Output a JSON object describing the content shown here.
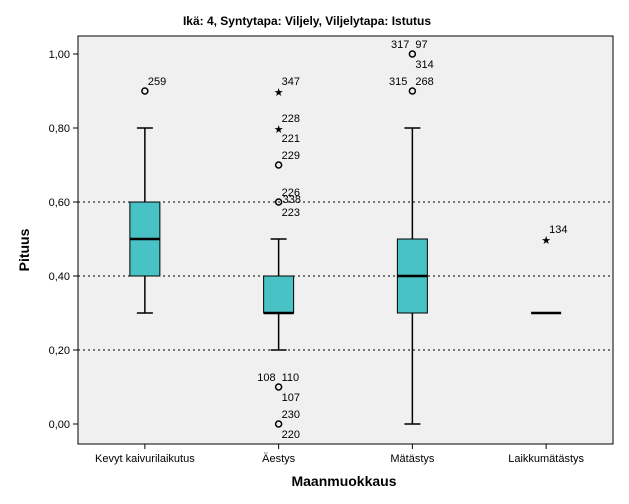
{
  "chart_data": {
    "type": "boxplot",
    "title": "Ikä: 4, Syntytapa: Viljely, Viljelytapa: Istutus",
    "xlabel": "Maanmuokkaus",
    "ylabel": "Pituus",
    "ylim": [
      0.0,
      1.05
    ],
    "yticks": [
      {
        "value": 0.0,
        "label": "0,00"
      },
      {
        "value": 0.2,
        "label": "0,20"
      },
      {
        "value": 0.4,
        "label": "0,40"
      },
      {
        "value": 0.6,
        "label": "0,60"
      },
      {
        "value": 0.8,
        "label": "0,80"
      },
      {
        "value": 1.0,
        "label": "1,00"
      }
    ],
    "reference_lines": [
      0.2,
      0.4,
      0.6
    ],
    "colors": {
      "plot_background": "#f0f0f0",
      "box_fill": "#48c2c5",
      "stroke": "#000000"
    },
    "categories": [
      "Kevyt kaivurilaikutus",
      "Äestys",
      "Mätästys",
      "Laikkumätästys"
    ],
    "boxes": [
      {
        "category": "Kevyt kaivurilaikutus",
        "whisker_low": 0.3,
        "q1": 0.4,
        "median": 0.5,
        "q3": 0.6,
        "whisker_high": 0.8,
        "outliers": [
          {
            "y": 0.9,
            "marker": "circle",
            "labels": [
              {
                "text": "259",
                "pos": "above-right"
              }
            ]
          }
        ]
      },
      {
        "category": "Äestys",
        "whisker_low": 0.2,
        "q1": 0.3,
        "median": 0.3,
        "q3": 0.4,
        "whisker_high": 0.5,
        "outliers": [
          {
            "y": 0.9,
            "marker": "star",
            "labels": [
              {
                "text": "347",
                "pos": "above-right"
              }
            ]
          },
          {
            "y": 0.8,
            "marker": "star",
            "labels": [
              {
                "text": "228",
                "pos": "above-right"
              },
              {
                "text": "221",
                "pos": "below-right"
              }
            ]
          },
          {
            "y": 0.7,
            "marker": "circle",
            "labels": [
              {
                "text": "229",
                "pos": "above-right"
              }
            ]
          },
          {
            "y": 0.6,
            "marker": "circle",
            "labels": [
              {
                "text": "226",
                "pos": "above-right"
              },
              {
                "text": "338",
                "pos": "right"
              },
              {
                "text": "223",
                "pos": "below-right"
              }
            ]
          },
          {
            "y": 0.1,
            "marker": "circle",
            "labels": [
              {
                "text": "108",
                "pos": "above-left"
              },
              {
                "text": "110",
                "pos": "above-right"
              },
              {
                "text": "107",
                "pos": "below-right"
              }
            ]
          },
          {
            "y": 0.0,
            "marker": "circle",
            "labels": [
              {
                "text": "230",
                "pos": "above-right"
              },
              {
                "text": "220",
                "pos": "below-right"
              }
            ]
          }
        ]
      },
      {
        "category": "Mätästys",
        "whisker_low": 0.0,
        "q1": 0.3,
        "median": 0.4,
        "q3": 0.5,
        "whisker_high": 0.8,
        "outliers": [
          {
            "y": 1.0,
            "marker": "circle",
            "labels": [
              {
                "text": "317",
                "pos": "above-left"
              },
              {
                "text": "97",
                "pos": "above-right"
              },
              {
                "text": "314",
                "pos": "below-right"
              }
            ]
          },
          {
            "y": 0.9,
            "marker": "circle",
            "labels": [
              {
                "text": "315",
                "pos": "left"
              },
              {
                "text": "268",
                "pos": "above-right"
              }
            ]
          }
        ]
      },
      {
        "category": "Laikkumätästys",
        "whisker_low": 0.3,
        "q1": 0.3,
        "median": 0.3,
        "q3": 0.3,
        "whisker_high": 0.3,
        "outliers": [
          {
            "y": 0.5,
            "marker": "star",
            "labels": [
              {
                "text": "134",
                "pos": "above-right"
              }
            ]
          }
        ]
      }
    ]
  }
}
